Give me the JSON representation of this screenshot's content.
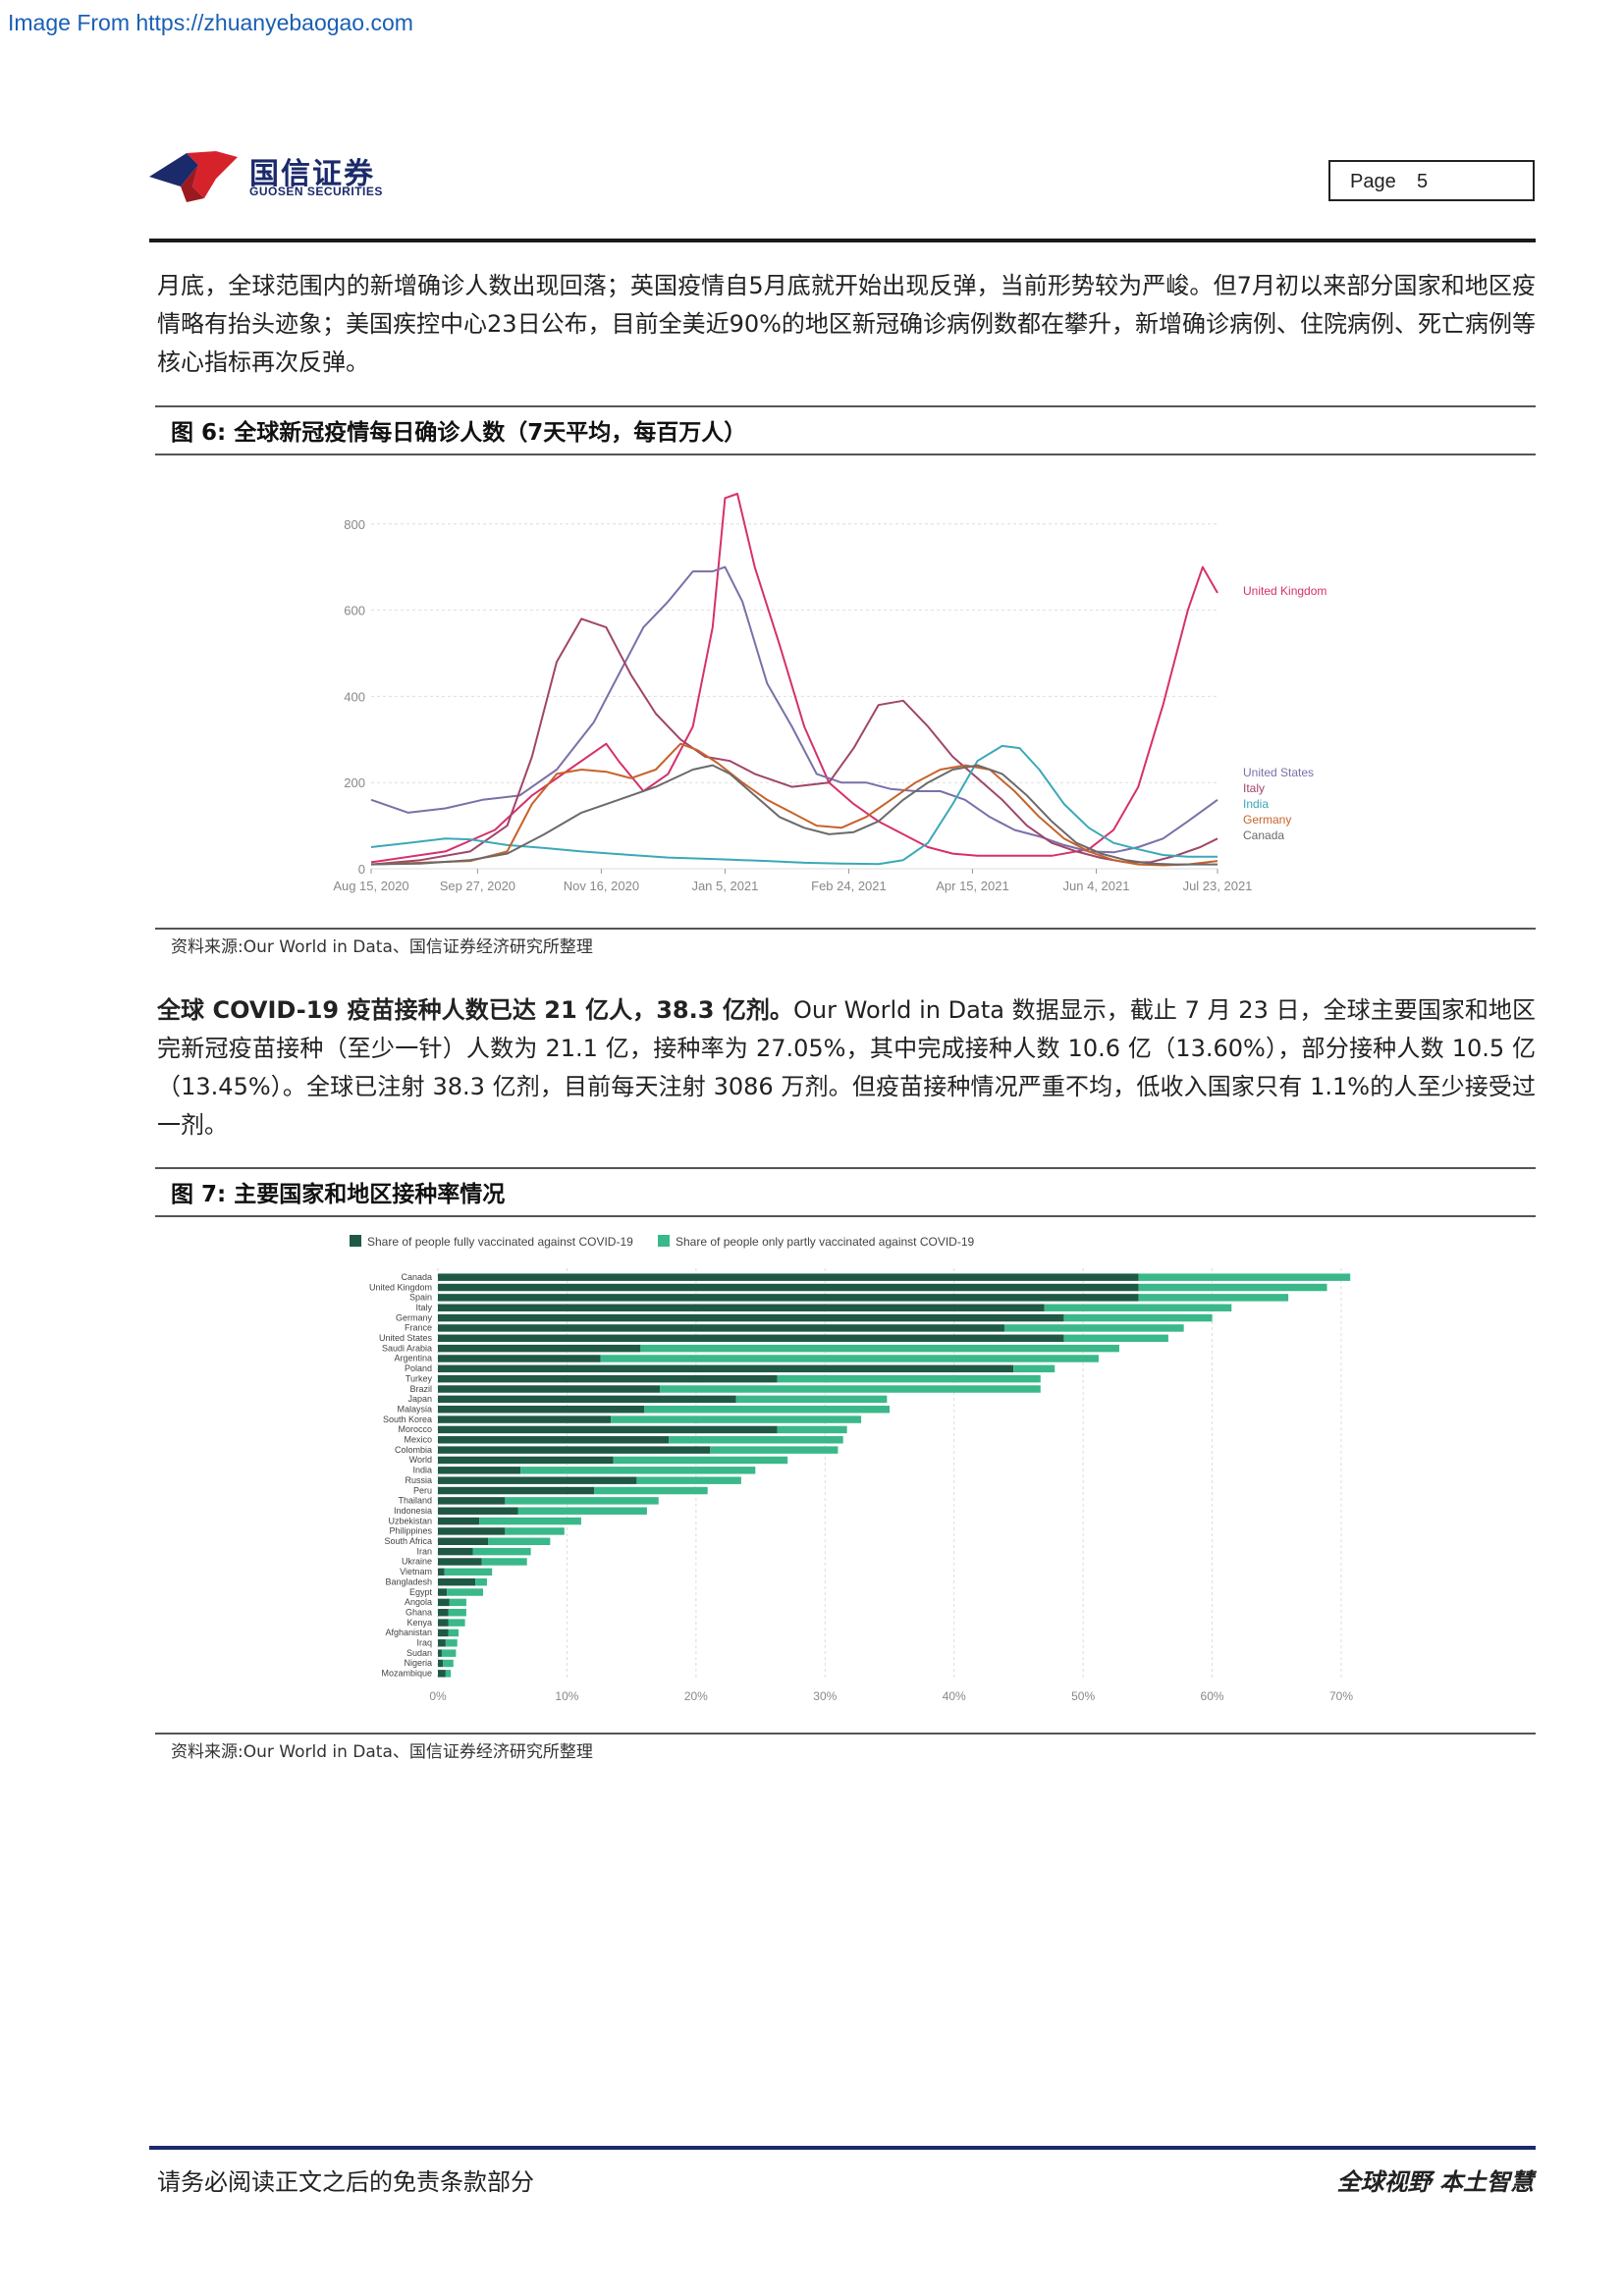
{
  "watermark": "Image From https://zhuanyebaogao.com",
  "header": {
    "logo_cn": "国信证券",
    "logo_en": "GUOSEN SECURITIES",
    "page_label": "Page",
    "page_number": "5"
  },
  "para1": "月底，全球范围内的新增确诊人数出现回落；英国疫情自5月底就开始出现反弹，当前形势较为严峻。但7月初以来部分国家和地区疫情略有抬头迹象；美国疾控中心23日公布，目前全美近90%的地区新冠确诊病例数都在攀升，新增确诊病例、住院病例、死亡病例等核心指标再次反弹。",
  "figure6": {
    "label": "图 6:",
    "title": "全球新冠疫情每日确诊人数（7天平均，每百万人）",
    "source": "资料来源:Our World in Data、国信证券经济研究所整理"
  },
  "para2": {
    "bold": "全球 COVID-19 疫苗接种人数已达 21 亿人，38.3 亿剂。",
    "rest": "Our World in Data 数据显示，截止 7 月 23 日，全球主要国家和地区完新冠疫苗接种（至少一针）人数为 21.1 亿，接种率为 27.05%，其中完成接种人数 10.6 亿（13.60%），部分接种人数 10.5 亿（13.45%）。全球已注射 38.3 亿剂，目前每天注射 3086 万剂。但疫苗接种情况严重不均，低收入国家只有 1.1%的人至少接受过一剂。"
  },
  "figure7": {
    "label": "图 7:",
    "title": "主要国家和地区接种率情况",
    "source": "资料来源:Our World in Data、国信证券经济研究所整理"
  },
  "footer": {
    "left": "请务必阅读正文之后的免责条款部分",
    "right": "全球视野  本土智慧"
  },
  "colors": {
    "uk": "#d6306c",
    "us": "#7b6fa8",
    "italy": "#a0456a",
    "india": "#3aa8b8",
    "germany": "#c8622a",
    "canada": "#6a6a6a",
    "fully": "#1f5946",
    "partly": "#3ab88a"
  },
  "chart_data": [
    {
      "type": "line",
      "y_ticks": [
        "0",
        "200",
        "400",
        "600",
        "800"
      ],
      "x_ticks": [
        "Aug 15, 2020",
        "Sep 27, 2020",
        "Nov 16, 2020",
        "Jan 5, 2021",
        "Feb 24, 2021",
        "Apr 15, 2021",
        "Jun 4, 2021",
        "Jul 23, 2021"
      ],
      "x_tick_days": [
        0,
        43,
        93,
        143,
        193,
        243,
        293,
        342
      ],
      "ylim": [
        0,
        820
      ],
      "xlim_days": [
        0,
        342
      ],
      "series": [
        {
          "name": "United Kingdom",
          "color_key": "uk",
          "points": [
            [
              0,
              15
            ],
            [
              30,
              40
            ],
            [
              50,
              90
            ],
            [
              65,
              170
            ],
            [
              80,
              230
            ],
            [
              95,
              290
            ],
            [
              100,
              250
            ],
            [
              110,
              180
            ],
            [
              120,
              220
            ],
            [
              130,
              330
            ],
            [
              138,
              560
            ],
            [
              143,
              860
            ],
            [
              148,
              870
            ],
            [
              155,
              700
            ],
            [
              165,
              520
            ],
            [
              175,
              330
            ],
            [
              185,
              200
            ],
            [
              195,
              150
            ],
            [
              205,
              110
            ],
            [
              215,
              80
            ],
            [
              225,
              50
            ],
            [
              235,
              35
            ],
            [
              245,
              30
            ],
            [
              260,
              30
            ],
            [
              275,
              30
            ],
            [
              290,
              45
            ],
            [
              300,
              90
            ],
            [
              310,
              190
            ],
            [
              320,
              380
            ],
            [
              330,
              600
            ],
            [
              336,
              700
            ],
            [
              342,
              640
            ]
          ]
        },
        {
          "name": "United States",
          "color_key": "us",
          "points": [
            [
              0,
              160
            ],
            [
              15,
              130
            ],
            [
              30,
              140
            ],
            [
              45,
              160
            ],
            [
              60,
              170
            ],
            [
              75,
              230
            ],
            [
              90,
              340
            ],
            [
              100,
              450
            ],
            [
              110,
              560
            ],
            [
              120,
              620
            ],
            [
              130,
              690
            ],
            [
              138,
              690
            ],
            [
              143,
              700
            ],
            [
              150,
              620
            ],
            [
              160,
              430
            ],
            [
              170,
              330
            ],
            [
              180,
              220
            ],
            [
              190,
              200
            ],
            [
              200,
              200
            ],
            [
              210,
              185
            ],
            [
              220,
              180
            ],
            [
              230,
              180
            ],
            [
              240,
              160
            ],
            [
              250,
              120
            ],
            [
              260,
              90
            ],
            [
              270,
              75
            ],
            [
              280,
              55
            ],
            [
              290,
              40
            ],
            [
              300,
              38
            ],
            [
              310,
              50
            ],
            [
              320,
              70
            ],
            [
              330,
              110
            ],
            [
              342,
              160
            ]
          ]
        },
        {
          "name": "Italy",
          "color_key": "italy",
          "points": [
            [
              0,
              10
            ],
            [
              20,
              20
            ],
            [
              40,
              40
            ],
            [
              55,
              100
            ],
            [
              65,
              260
            ],
            [
              75,
              480
            ],
            [
              85,
              580
            ],
            [
              95,
              560
            ],
            [
              105,
              450
            ],
            [
              115,
              360
            ],
            [
              125,
              300
            ],
            [
              135,
              260
            ],
            [
              145,
              250
            ],
            [
              155,
              220
            ],
            [
              170,
              190
            ],
            [
              185,
              200
            ],
            [
              195,
              280
            ],
            [
              205,
              380
            ],
            [
              215,
              390
            ],
            [
              225,
              330
            ],
            [
              235,
              260
            ],
            [
              245,
              210
            ],
            [
              255,
              160
            ],
            [
              265,
              100
            ],
            [
              275,
              60
            ],
            [
              285,
              40
            ],
            [
              295,
              25
            ],
            [
              305,
              15
            ],
            [
              315,
              15
            ],
            [
              325,
              30
            ],
            [
              335,
              50
            ],
            [
              342,
              70
            ]
          ]
        },
        {
          "name": "India",
          "color_key": "india",
          "points": [
            [
              0,
              50
            ],
            [
              15,
              60
            ],
            [
              30,
              70
            ],
            [
              40,
              68
            ],
            [
              55,
              55
            ],
            [
              70,
              48
            ],
            [
              85,
              40
            ],
            [
              100,
              34
            ],
            [
              120,
              26
            ],
            [
              140,
              22
            ],
            [
              160,
              18
            ],
            [
              175,
              14
            ],
            [
              190,
              12
            ],
            [
              205,
              11
            ],
            [
              215,
              20
            ],
            [
              225,
              60
            ],
            [
              235,
              150
            ],
            [
              245,
              250
            ],
            [
              255,
              285
            ],
            [
              262,
              280
            ],
            [
              270,
              230
            ],
            [
              280,
              150
            ],
            [
              290,
              95
            ],
            [
              300,
              60
            ],
            [
              310,
              45
            ],
            [
              320,
              32
            ],
            [
              330,
              28
            ],
            [
              342,
              28
            ]
          ]
        },
        {
          "name": "Germany",
          "color_key": "germany",
          "points": [
            [
              0,
              10
            ],
            [
              20,
              14
            ],
            [
              40,
              18
            ],
            [
              55,
              40
            ],
            [
              65,
              150
            ],
            [
              75,
              220
            ],
            [
              85,
              230
            ],
            [
              95,
              225
            ],
            [
              105,
              210
            ],
            [
              115,
              230
            ],
            [
              125,
              290
            ],
            [
              132,
              275
            ],
            [
              140,
              245
            ],
            [
              150,
              200
            ],
            [
              160,
              160
            ],
            [
              170,
              130
            ],
            [
              180,
              100
            ],
            [
              190,
              95
            ],
            [
              200,
              120
            ],
            [
              210,
              160
            ],
            [
              220,
              200
            ],
            [
              230,
              230
            ],
            [
              240,
              240
            ],
            [
              250,
              230
            ],
            [
              260,
              180
            ],
            [
              270,
              120
            ],
            [
              280,
              70
            ],
            [
              290,
              40
            ],
            [
              300,
              20
            ],
            [
              310,
              10
            ],
            [
              320,
              8
            ],
            [
              330,
              10
            ],
            [
              342,
              18
            ]
          ]
        },
        {
          "name": "Canada",
          "color_key": "canada",
          "points": [
            [
              0,
              10
            ],
            [
              20,
              12
            ],
            [
              40,
              20
            ],
            [
              55,
              35
            ],
            [
              70,
              80
            ],
            [
              85,
              130
            ],
            [
              100,
              160
            ],
            [
              115,
              190
            ],
            [
              130,
              230
            ],
            [
              138,
              240
            ],
            [
              145,
              220
            ],
            [
              155,
              170
            ],
            [
              165,
              120
            ],
            [
              175,
              95
            ],
            [
              185,
              80
            ],
            [
              195,
              85
            ],
            [
              205,
              110
            ],
            [
              215,
              160
            ],
            [
              225,
              200
            ],
            [
              235,
              230
            ],
            [
              245,
              240
            ],
            [
              255,
              220
            ],
            [
              265,
              170
            ],
            [
              275,
              110
            ],
            [
              285,
              60
            ],
            [
              295,
              35
            ],
            [
              305,
              20
            ],
            [
              315,
              12
            ],
            [
              325,
              10
            ],
            [
              342,
              10
            ]
          ]
        }
      ]
    },
    {
      "type": "bar",
      "stacked": true,
      "orientation": "horizontal",
      "legend": [
        "Share of people fully vaccinated against COVID-19",
        "Share of people only partly vaccinated against COVID-19"
      ],
      "x_ticks": [
        "0%",
        "10%",
        "20%",
        "30%",
        "40%",
        "50%",
        "60%",
        "70%"
      ],
      "xlim": [
        0,
        70
      ],
      "categories": [
        "Canada",
        "United Kingdom",
        "Spain",
        "Italy",
        "Germany",
        "France",
        "United States",
        "Saudi Arabia",
        "Argentina",
        "Poland",
        "Turkey",
        "Brazil",
        "Japan",
        "Malaysia",
        "South Korea",
        "Morocco",
        "Mexico",
        "Colombia",
        "World",
        "India",
        "Russia",
        "Peru",
        "Thailand",
        "Indonesia",
        "Uzbekistan",
        "Philippines",
        "South Africa",
        "Iran",
        "Ukraine",
        "Vietnam",
        "Bangladesh",
        "Egypt",
        "Angola",
        "Ghana",
        "Kenya",
        "Afghanistan",
        "Iraq",
        "Sudan",
        "Nigeria",
        "Mozambique"
      ],
      "series": [
        {
          "name": "Share of people fully vaccinated against COVID-19",
          "values": [
            54.3,
            54.3,
            54.3,
            47.0,
            48.5,
            43.9,
            48.5,
            15.7,
            12.6,
            44.6,
            26.3,
            17.2,
            23.1,
            16.0,
            13.4,
            26.3,
            17.9,
            21.1,
            13.6,
            6.4,
            15.4,
            12.1,
            5.2,
            6.2,
            3.2,
            5.2,
            3.9,
            2.7,
            3.4,
            0.5,
            2.9,
            0.7,
            0.9,
            0.8,
            0.8,
            0.8,
            0.6,
            0.3,
            0.4,
            0.6
          ]
        },
        {
          "name": "Share of people only partly vaccinated against COVID-19",
          "values": [
            16.4,
            14.6,
            11.6,
            14.5,
            11.5,
            13.9,
            8.1,
            37.1,
            38.6,
            3.2,
            20.4,
            29.5,
            11.7,
            19.0,
            19.4,
            5.4,
            13.5,
            9.9,
            13.5,
            18.2,
            8.1,
            8.8,
            11.9,
            10.0,
            7.9,
            4.6,
            4.8,
            4.5,
            3.5,
            3.7,
            0.9,
            2.8,
            1.3,
            1.4,
            1.3,
            0.8,
            0.9,
            1.1,
            0.8,
            0.4
          ]
        }
      ]
    }
  ]
}
